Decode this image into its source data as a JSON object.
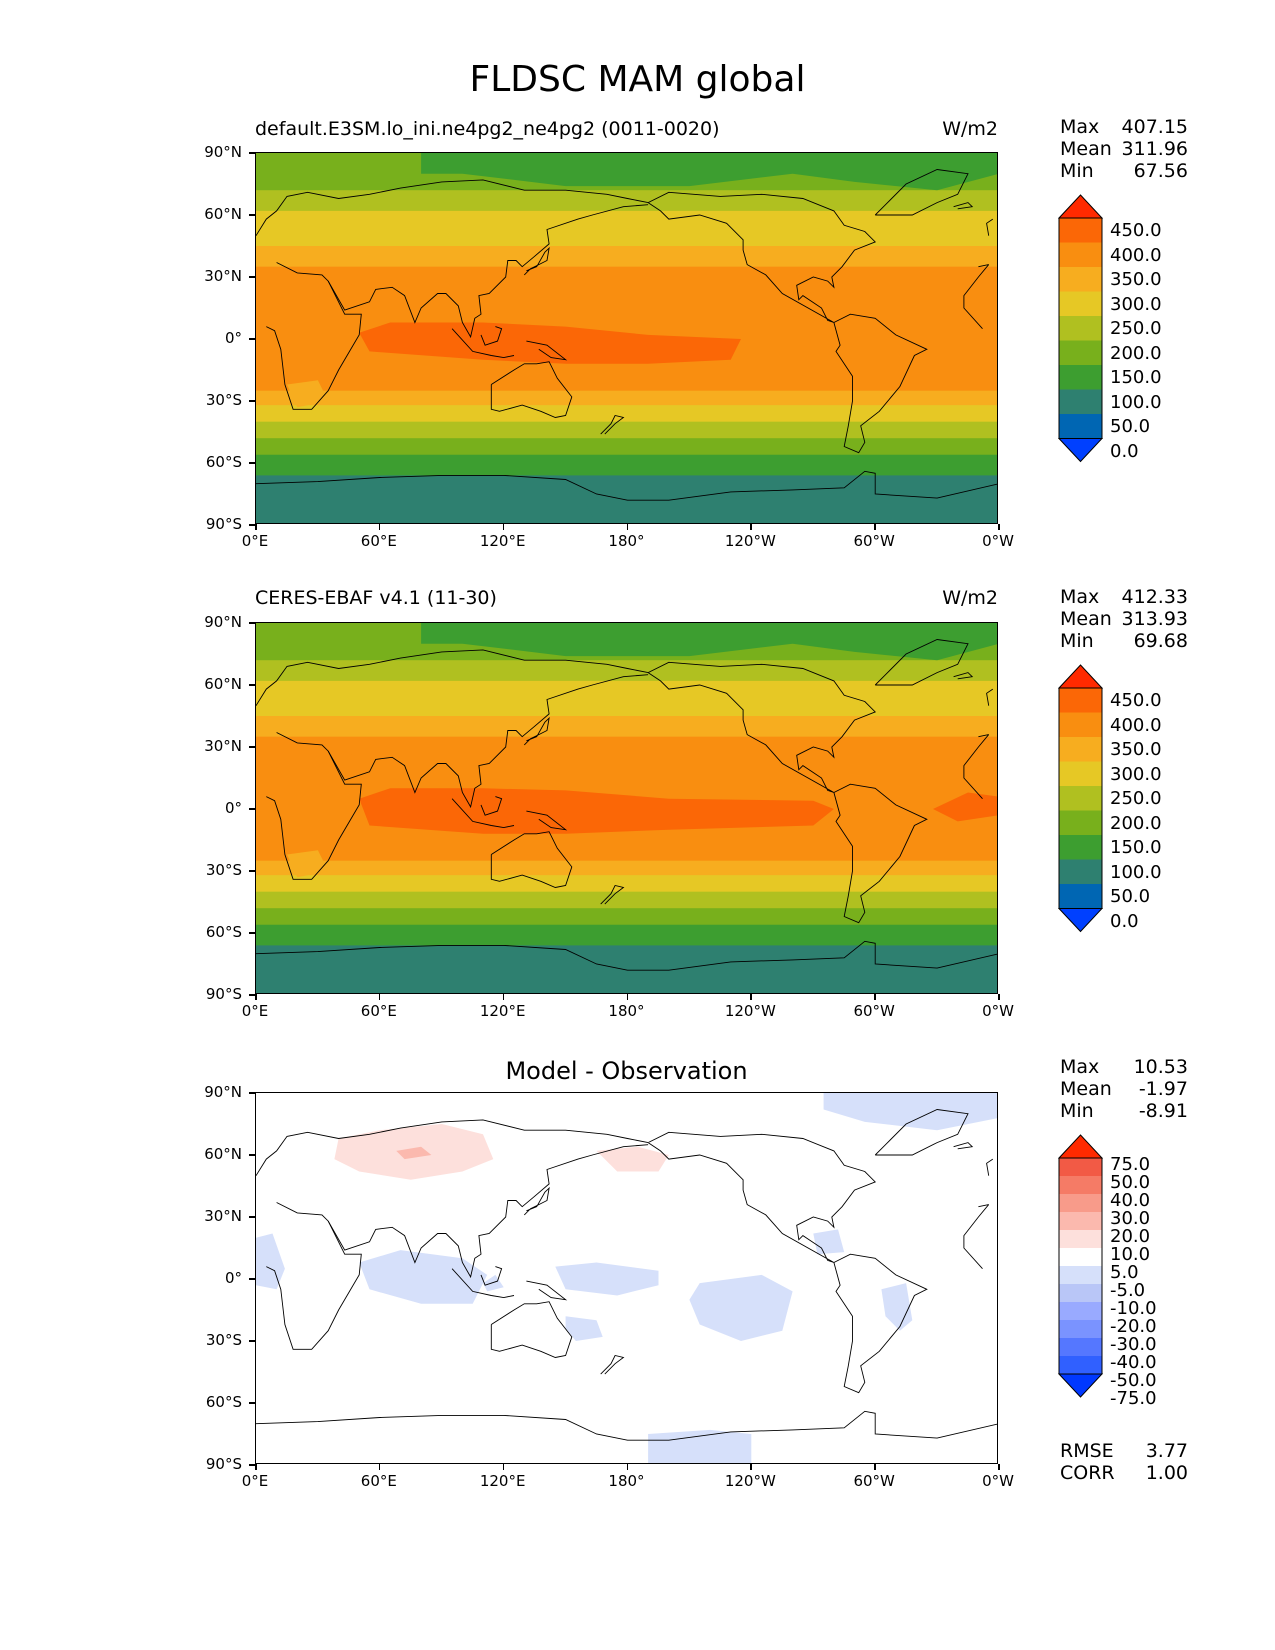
{
  "figure": {
    "title": "FLDSC MAM global"
  },
  "axes": {
    "lat_labels": [
      "90°N",
      "60°N",
      "30°N",
      "0°",
      "30°S",
      "60°S",
      "90°S"
    ],
    "lon_labels": [
      "0°E",
      "60°E",
      "120°E",
      "180°",
      "120°W",
      "60°W",
      "0°W"
    ]
  },
  "panels": [
    {
      "left_title": "default.E3SM.lo_ini.ne4pg2_ne4pg2 (0011-0020)",
      "right_title": "W/m2",
      "stats": {
        "max_label": "Max",
        "max": "407.15",
        "mean_label": "Mean",
        "mean": "311.96",
        "min_label": "Min",
        "min": "67.56"
      },
      "colorbar_labels": [
        "450.0",
        "400.0",
        "350.0",
        "300.0",
        "250.0",
        "200.0",
        "150.0",
        "100.0",
        "50.0",
        "0.0"
      ]
    },
    {
      "left_title": "CERES-EBAF v4.1 (11-30)",
      "right_title": "W/m2",
      "stats": {
        "max_label": "Max",
        "max": "412.33",
        "mean_label": "Mean",
        "mean": "313.93",
        "min_label": "Min",
        "min": "69.68"
      },
      "colorbar_labels": [
        "450.0",
        "400.0",
        "350.0",
        "300.0",
        "250.0",
        "200.0",
        "150.0",
        "100.0",
        "50.0",
        "0.0"
      ]
    },
    {
      "center_title": "Model - Observation",
      "stats": {
        "max_label": "Max",
        "max": "10.53",
        "mean_label": "Mean",
        "mean": "-1.97",
        "min_label": "Min",
        "min": "-8.91"
      },
      "colorbar_labels": [
        "75.0",
        "50.0",
        "40.0",
        "30.0",
        "20.0",
        "10.0",
        "5.0",
        "-5.0",
        "-10.0",
        "-20.0",
        "-30.0",
        "-40.0",
        "-50.0",
        "-75.0"
      ],
      "metrics": {
        "rmse_label": "RMSE",
        "rmse": "3.77",
        "corr_label": "CORR",
        "corr": "1.00"
      }
    }
  ],
  "colors": {
    "field_levels": [
      "#0040ff",
      "#0066b3",
      "#2e8070",
      "#3d9e30",
      "#78b01c",
      "#b0c020",
      "#e6c825",
      "#f7ad1f",
      "#f98e10",
      "#fb6706",
      "#ff2a00"
    ],
    "diff_levels": [
      "#0038ff",
      "#3060ff",
      "#5577ff",
      "#7a93ff",
      "#99aaff",
      "#b9c6f7",
      "#d6e0fa",
      "#ffffff",
      "#fde0dc",
      "#fbb9ae",
      "#f89b8a",
      "#f57b66",
      "#f25a45",
      "#ff2a00"
    ]
  }
}
